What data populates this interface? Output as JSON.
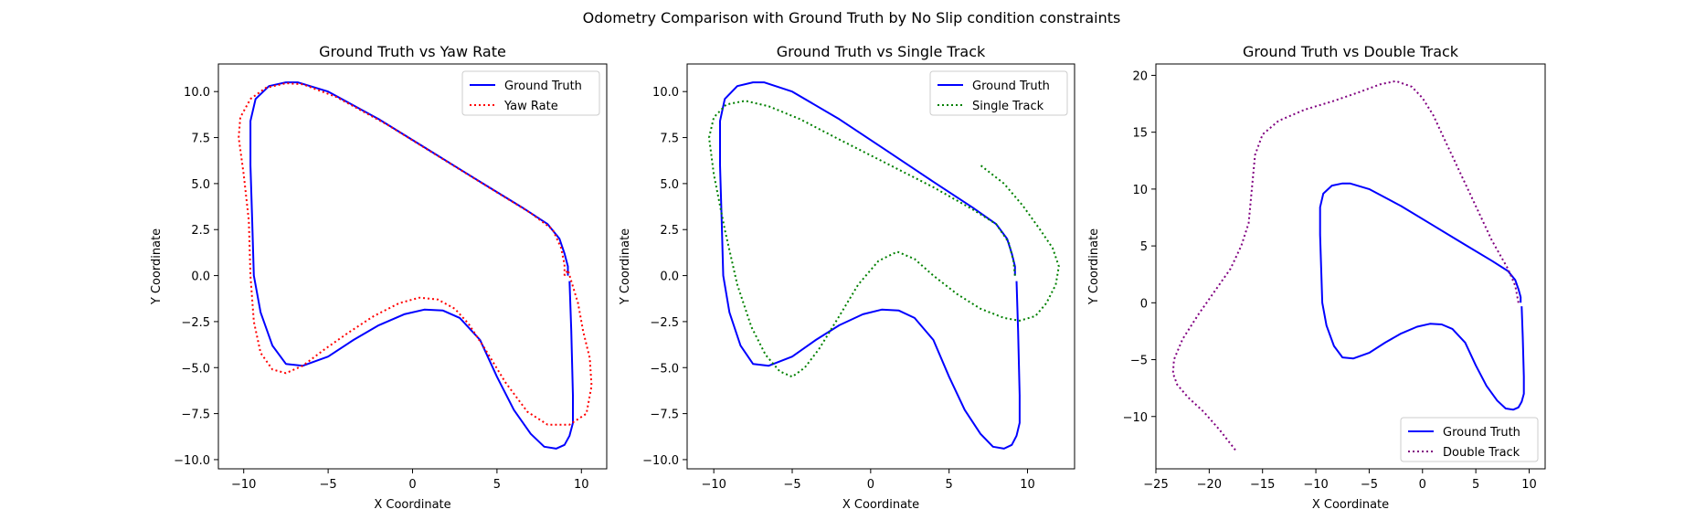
{
  "suptitle": "Odometry Comparison with Ground Truth by No Slip condition constraints",
  "colors": {
    "ground_truth": "#0000ff",
    "yaw_rate": "#ff0000",
    "single_track": "#008000",
    "double_track": "#800080"
  },
  "chart_data": [
    {
      "type": "line",
      "title": "Ground Truth vs Yaw Rate",
      "xlabel": "X Coordinate",
      "ylabel": "Y Coordinate",
      "xlim": [
        -11.5,
        11.5
      ],
      "ylim": [
        -10.5,
        11.5
      ],
      "xticks": [
        -10,
        -5,
        0,
        5,
        10
      ],
      "xtick_labels": [
        "−10",
        "−5",
        "0",
        "5",
        "10"
      ],
      "yticks": [
        -10,
        -7.5,
        -5,
        -2.5,
        0,
        2.5,
        5,
        7.5,
        10
      ],
      "ytick_labels": [
        "−10.0",
        "−7.5",
        "−5.0",
        "−2.5",
        "0.0",
        "2.5",
        "5.0",
        "7.5",
        "10.0"
      ],
      "legend_position": "top-right",
      "grid": false,
      "series": [
        {
          "name": "Ground Truth",
          "style": "solid",
          "color": "#0000ff",
          "x": [
            9.2,
            9.2,
            9.0,
            8.7,
            8.0,
            6.5,
            4.0,
            1.0,
            -2.0,
            -5.0,
            -6.8,
            -7.5,
            -8.5,
            -9.3,
            -9.6,
            -9.6,
            -9.5,
            -9.4,
            -9.0,
            -8.3,
            -7.5,
            -6.5,
            -5.0,
            -3.5,
            -2.0,
            -0.5,
            0.7,
            1.8,
            2.8,
            4.0,
            5.0,
            6.0,
            7.0,
            7.8,
            8.5,
            9.0,
            9.3,
            9.5,
            9.5,
            9.4,
            9.3
          ],
          "y": [
            0,
            0.5,
            1.2,
            2.0,
            2.8,
            3.7,
            5.1,
            6.8,
            8.5,
            10.0,
            10.5,
            10.5,
            10.3,
            9.6,
            8.4,
            6.0,
            3.0,
            0.0,
            -2.0,
            -3.8,
            -4.8,
            -4.9,
            -4.4,
            -3.5,
            -2.7,
            -2.1,
            -1.85,
            -1.9,
            -2.3,
            -3.5,
            -5.5,
            -7.3,
            -8.6,
            -9.3,
            -9.4,
            -9.2,
            -8.7,
            -8.0,
            -6.5,
            -3.0,
            -0.3
          ]
        },
        {
          "name": "Yaw Rate",
          "style": "dotted",
          "color": "#ff0000",
          "x": [
            9.0,
            9.0,
            8.8,
            8.3,
            7.0,
            4.5,
            1.5,
            -1.5,
            -4.5,
            -6.5,
            -7.5,
            -8.7,
            -9.6,
            -10.2,
            -10.3,
            -10.0,
            -9.7,
            -9.6,
            -9.4,
            -9.0,
            -8.3,
            -7.5,
            -6.5,
            -5.2,
            -3.8,
            -2.3,
            -0.8,
            0.4,
            1.5,
            2.5,
            3.3,
            4.3,
            5.5,
            6.8,
            8.0,
            9.3,
            10.3,
            10.6,
            10.5,
            10.1,
            9.8,
            9.2,
            9.0
          ],
          "y": [
            0,
            0.6,
            1.5,
            2.5,
            3.4,
            4.8,
            6.5,
            8.2,
            9.7,
            10.4,
            10.45,
            10.2,
            9.6,
            8.6,
            7.5,
            5.5,
            3.0,
            0.0,
            -2.5,
            -4.2,
            -5.1,
            -5.3,
            -4.9,
            -4.0,
            -3.1,
            -2.2,
            -1.5,
            -1.2,
            -1.3,
            -1.8,
            -2.6,
            -4.0,
            -5.8,
            -7.4,
            -8.1,
            -8.1,
            -7.5,
            -6.0,
            -4.5,
            -3.0,
            -1.5,
            0.3,
            0.0
          ]
        }
      ]
    },
    {
      "type": "line",
      "title": "Ground Truth vs Single Track",
      "xlabel": "X Coordinate",
      "ylabel": "Y Coordinate",
      "xlim": [
        -11.7,
        13.0
      ],
      "ylim": [
        -10.5,
        11.5
      ],
      "xticks": [
        -10,
        -5,
        0,
        5,
        10
      ],
      "xtick_labels": [
        "−10",
        "−5",
        "0",
        "5",
        "10"
      ],
      "yticks": [
        -10,
        -7.5,
        -5,
        -2.5,
        0,
        2.5,
        5,
        7.5,
        10
      ],
      "ytick_labels": [
        "−10.0",
        "−7.5",
        "−5.0",
        "−2.5",
        "0.0",
        "2.5",
        "5.0",
        "7.5",
        "10.0"
      ],
      "legend_position": "top-right",
      "grid": false,
      "series": [
        {
          "name": "Ground Truth",
          "style": "solid",
          "color": "#0000ff",
          "x": [
            9.2,
            9.2,
            9.0,
            8.7,
            8.0,
            6.5,
            4.0,
            1.0,
            -2.0,
            -5.0,
            -6.8,
            -7.5,
            -8.5,
            -9.3,
            -9.6,
            -9.6,
            -9.5,
            -9.4,
            -9.0,
            -8.3,
            -7.5,
            -6.5,
            -5.0,
            -3.5,
            -2.0,
            -0.5,
            0.7,
            1.8,
            2.8,
            4.0,
            5.0,
            6.0,
            7.0,
            7.8,
            8.5,
            9.0,
            9.3,
            9.5,
            9.5,
            9.4,
            9.3
          ],
          "y": [
            0,
            0.5,
            1.2,
            2.0,
            2.8,
            3.7,
            5.1,
            6.8,
            8.5,
            10.0,
            10.5,
            10.5,
            10.3,
            9.6,
            8.4,
            6.0,
            3.0,
            0.0,
            -2.0,
            -3.8,
            -4.8,
            -4.9,
            -4.4,
            -3.5,
            -2.7,
            -2.1,
            -1.85,
            -1.9,
            -2.3,
            -3.5,
            -5.5,
            -7.3,
            -8.6,
            -9.3,
            -9.4,
            -9.2,
            -8.7,
            -8.0,
            -6.5,
            -3.0,
            -0.3
          ]
        },
        {
          "name": "Single Track",
          "style": "dotted",
          "color": "#008000",
          "x": [
            9.2,
            9.1,
            8.8,
            8.0,
            6.5,
            4.0,
            1.0,
            -2.0,
            -4.5,
            -6.5,
            -8.0,
            -9.2,
            -10.0,
            -10.3,
            -10.0,
            -9.3,
            -8.5,
            -7.6,
            -6.7,
            -5.8,
            -5.0,
            -4.2,
            -3.3,
            -2.0,
            -0.8,
            0.5,
            1.7,
            2.8,
            4.0,
            5.5,
            7.0,
            8.5,
            9.5,
            10.5,
            11.2,
            11.8,
            12.0,
            11.6,
            10.8,
            9.7,
            8.5,
            7.0
          ],
          "y": [
            0,
            0.8,
            1.8,
            2.8,
            3.6,
            4.8,
            6.1,
            7.4,
            8.5,
            9.2,
            9.5,
            9.3,
            8.6,
            7.5,
            5.5,
            2.5,
            -0.5,
            -2.8,
            -4.3,
            -5.2,
            -5.5,
            -5.0,
            -4.0,
            -2.2,
            -0.5,
            0.8,
            1.3,
            0.9,
            0.0,
            -1.0,
            -1.8,
            -2.3,
            -2.45,
            -2.2,
            -1.5,
            -0.5,
            0.5,
            1.5,
            2.5,
            3.8,
            5.0,
            6.0
          ]
        }
      ]
    },
    {
      "type": "line",
      "title": "Ground Truth vs Double Track",
      "xlabel": "X Coordinate",
      "ylabel": "Y Coordinate",
      "xlim": [
        -25,
        11.5
      ],
      "ylim": [
        -14.6,
        21.0
      ],
      "xticks": [
        -25,
        -20,
        -15,
        -10,
        -5,
        0,
        5,
        10
      ],
      "xtick_labels": [
        "−25",
        "−20",
        "−15",
        "−10",
        "−5",
        "0",
        "5",
        "10"
      ],
      "yticks": [
        -10,
        -5,
        0,
        5,
        10,
        15,
        20
      ],
      "ytick_labels": [
        "−10",
        "−5",
        "0",
        "5",
        "10",
        "15",
        "20"
      ],
      "legend_position": "bottom-right",
      "grid": false,
      "series": [
        {
          "name": "Ground Truth",
          "style": "solid",
          "color": "#0000ff",
          "x": [
            9.2,
            9.2,
            9.0,
            8.7,
            8.0,
            6.5,
            4.0,
            1.0,
            -2.0,
            -5.0,
            -6.8,
            -7.5,
            -8.5,
            -9.3,
            -9.6,
            -9.6,
            -9.5,
            -9.4,
            -9.0,
            -8.3,
            -7.5,
            -6.5,
            -5.0,
            -3.5,
            -2.0,
            -0.5,
            0.7,
            1.8,
            2.8,
            4.0,
            5.0,
            6.0,
            7.0,
            7.8,
            8.5,
            9.0,
            9.3,
            9.5,
            9.5,
            9.4,
            9.3
          ],
          "y": [
            0,
            0.5,
            1.2,
            2.0,
            2.8,
            3.7,
            5.1,
            6.8,
            8.5,
            10.0,
            10.5,
            10.5,
            10.3,
            9.6,
            8.4,
            6.0,
            3.0,
            0.0,
            -2.0,
            -3.8,
            -4.8,
            -4.9,
            -4.4,
            -3.5,
            -2.7,
            -2.1,
            -1.85,
            -1.9,
            -2.3,
            -3.5,
            -5.5,
            -7.3,
            -8.6,
            -9.3,
            -9.4,
            -9.2,
            -8.7,
            -8.0,
            -6.5,
            -3.0,
            -0.3
          ]
        },
        {
          "name": "Double Track",
          "style": "dotted",
          "color": "#800080",
          "x": [
            9.0,
            8.7,
            8.0,
            6.5,
            5.0,
            3.5,
            2.0,
            1.0,
            0.0,
            -1.0,
            -2.5,
            -4.0,
            -6.0,
            -8.5,
            -11.0,
            -13.5,
            -15.0,
            -15.7,
            -16.0,
            -16.3,
            -17.0,
            -18.0,
            -19.5,
            -21.0,
            -22.5,
            -23.3,
            -23.4,
            -23.0,
            -22.0,
            -20.5,
            -19.0,
            -17.5
          ],
          "y": [
            0,
            1.5,
            3.0,
            5.5,
            8.5,
            11.5,
            14.5,
            16.5,
            18.0,
            19.0,
            19.5,
            19.2,
            18.5,
            17.7,
            17.0,
            16.0,
            14.8,
            13.0,
            10.0,
            7.0,
            5.0,
            3.0,
            1.0,
            -1.0,
            -3.2,
            -5.0,
            -6.2,
            -7.2,
            -8.3,
            -9.6,
            -11.2,
            -13.0
          ]
        }
      ]
    }
  ]
}
